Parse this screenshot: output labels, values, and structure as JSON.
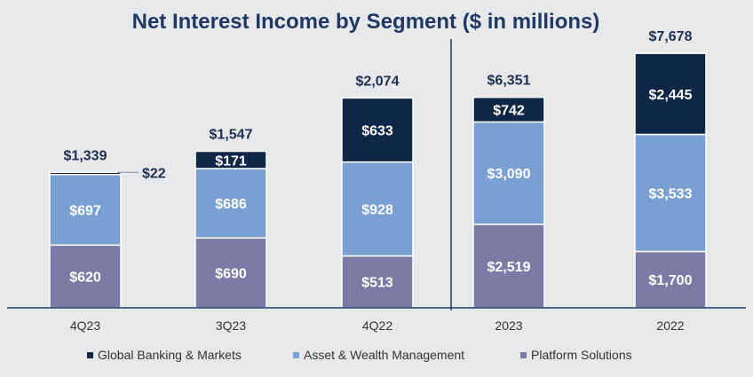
{
  "chart_data": {
    "type": "bar",
    "stacked": true,
    "title": "Net Interest Income by Segment ($ in millions)",
    "categories": [
      "4Q23",
      "3Q23",
      "4Q22",
      "2023",
      "2022"
    ],
    "series": [
      {
        "name": "Platform Solutions",
        "color": "#7c7ba6",
        "values": [
          620,
          690,
          513,
          2519,
          1700
        ],
        "labels": [
          "$620",
          "$690",
          "$513",
          "$2,519",
          "$1,700"
        ]
      },
      {
        "name": "Asset & Wealth Management",
        "color": "#7a9fd2",
        "values": [
          697,
          686,
          928,
          3090,
          3533
        ],
        "labels": [
          "$697",
          "$686",
          "$928",
          "$3,090",
          "$3,533"
        ]
      },
      {
        "name": "Global Banking & Markets",
        "color": "#0f2647",
        "values": [
          22,
          171,
          633,
          742,
          2445
        ],
        "labels": [
          "$22",
          "$171",
          "$633",
          "$742",
          "$2,445"
        ]
      }
    ],
    "totals": [
      "$1,339",
      "$1,547",
      "$2,074",
      "$6,351",
      "$7,678"
    ],
    "legend_order": [
      "Global Banking & Markets",
      "Asset & Wealth Management",
      "Platform Solutions"
    ],
    "legend_position": "bottom",
    "panels": [
      {
        "categories": [
          "4Q23",
          "3Q23",
          "4Q22"
        ],
        "ylim": [
          0,
          2630
        ]
      },
      {
        "categories": [
          "2023",
          "2022"
        ],
        "ylim": [
          0,
          8030
        ]
      }
    ],
    "grid": false,
    "separator_between": [
      "4Q22",
      "2023"
    ]
  }
}
